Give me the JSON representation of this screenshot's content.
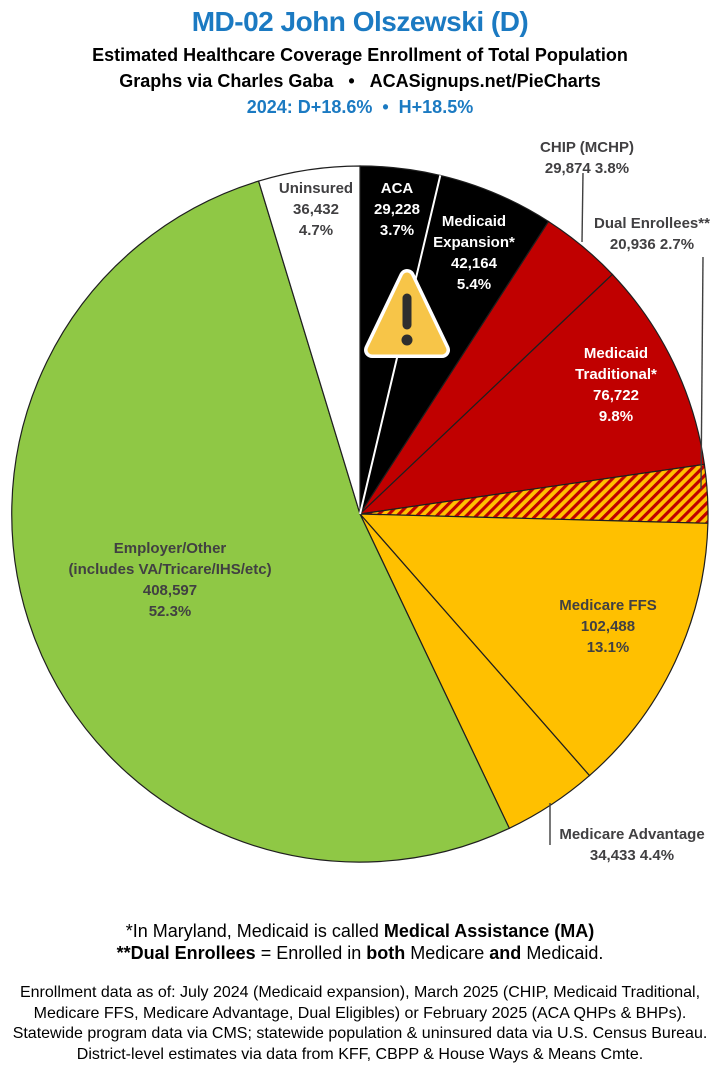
{
  "header": {
    "title": "MD-02 John Olszewski (D)",
    "subtitle": "Estimated Healthcare Coverage Enrollment of Total Population",
    "byline": "Graphs via Charles Gaba   •   ACASignups.net/PieCharts",
    "partisan_line": "2024: D+18.6%  •  H+18.5%",
    "title_color": "#1b7ac2"
  },
  "chart_data": {
    "type": "pie",
    "title": "Estimated Healthcare Coverage Enrollment of Total Population",
    "start_angle_deg": 0,
    "direction": "clockwise",
    "outline_color": "#1f1f1f",
    "hatch": {
      "bg": "#FFC000",
      "stripe": "#C00000"
    },
    "white_separator_after_index": 0,
    "slices": [
      {
        "name": "ACA",
        "enrollment": 29228,
        "pct": 3.7,
        "color": "#000000",
        "text_color": "#ffffff",
        "label_lines": [
          "ACA",
          "29,228",
          "3.7%"
        ]
      },
      {
        "name": "Medicaid Expansion*",
        "enrollment": 42164,
        "pct": 5.4,
        "color": "#000000",
        "text_color": "#ffffff",
        "label_lines": [
          "Medicaid",
          "Expansion*",
          "42,164",
          "5.4%"
        ]
      },
      {
        "name": "CHIP (MCHP)",
        "enrollment": 29874,
        "pct": 3.8,
        "color": "#C00000",
        "text_color": "#414042",
        "label_lines": [
          "CHIP (MCHP)",
          "29,874 3.8%"
        ]
      },
      {
        "name": "Medicaid Traditional*",
        "enrollment": 76722,
        "pct": 9.8,
        "color": "#C00000",
        "text_color": "#ffffff",
        "label_lines": [
          "Medicaid",
          "Traditional*",
          "76,722",
          "9.8%"
        ]
      },
      {
        "name": "Dual Enrollees**",
        "enrollment": 20936,
        "pct": 2.7,
        "color": "hatch",
        "text_color": "#414042",
        "label_lines": [
          "Dual Enrollees**",
          "20,936 2.7%"
        ]
      },
      {
        "name": "Medicare FFS",
        "enrollment": 102488,
        "pct": 13.1,
        "color": "#FFC000",
        "text_color": "#414042",
        "label_lines": [
          "Medicare FFS",
          "102,488",
          "13.1%"
        ]
      },
      {
        "name": "Medicare Advantage",
        "enrollment": 34433,
        "pct": 4.4,
        "color": "#FFC000",
        "text_color": "#414042",
        "label_lines": [
          "Medicare Advantage",
          "34,433 4.4%"
        ]
      },
      {
        "name": "Employer/Other",
        "enrollment": 408597,
        "pct": 52.3,
        "color": "#8FC845",
        "text_color": "#414042",
        "label_lines": [
          "Employer/Other",
          "(includes VA/Tricare/IHS/etc)",
          "408,597",
          "52.3%"
        ]
      },
      {
        "name": "Uninsured",
        "enrollment": 36432,
        "pct": 4.7,
        "color": "#ffffff",
        "text_color": "#414042",
        "label_lines": [
          "Uninsured",
          "36,432",
          "4.7%"
        ]
      }
    ]
  },
  "warning_icon": {
    "fill": "#F7C548",
    "border": "#ffffff",
    "mark": "#2e2e2e"
  },
  "footnotes": {
    "medicaid": [
      "*In Maryland, Medicaid is called ",
      "Medical Assistance (MA)"
    ],
    "dual": [
      "**Dual Enrollees",
      " = Enrolled in ",
      "both",
      " Medicare ",
      "and",
      " Medicaid."
    ]
  },
  "source_lines": [
    "Enrollment data as of: July 2024 (Medicaid expansion), March 2025 (CHIP, Medicaid Traditional,",
    "Medicare FFS, Medicare Advantage, Dual Eligibles) or February 2025 (ACA QHPs & BHPs).",
    "Statewide program data via CMS; statewide population & uninsured data via U.S. Census Bureau.",
    "District-level estimates via data from KFF, CBPP & House Ways & Means Cmte."
  ]
}
